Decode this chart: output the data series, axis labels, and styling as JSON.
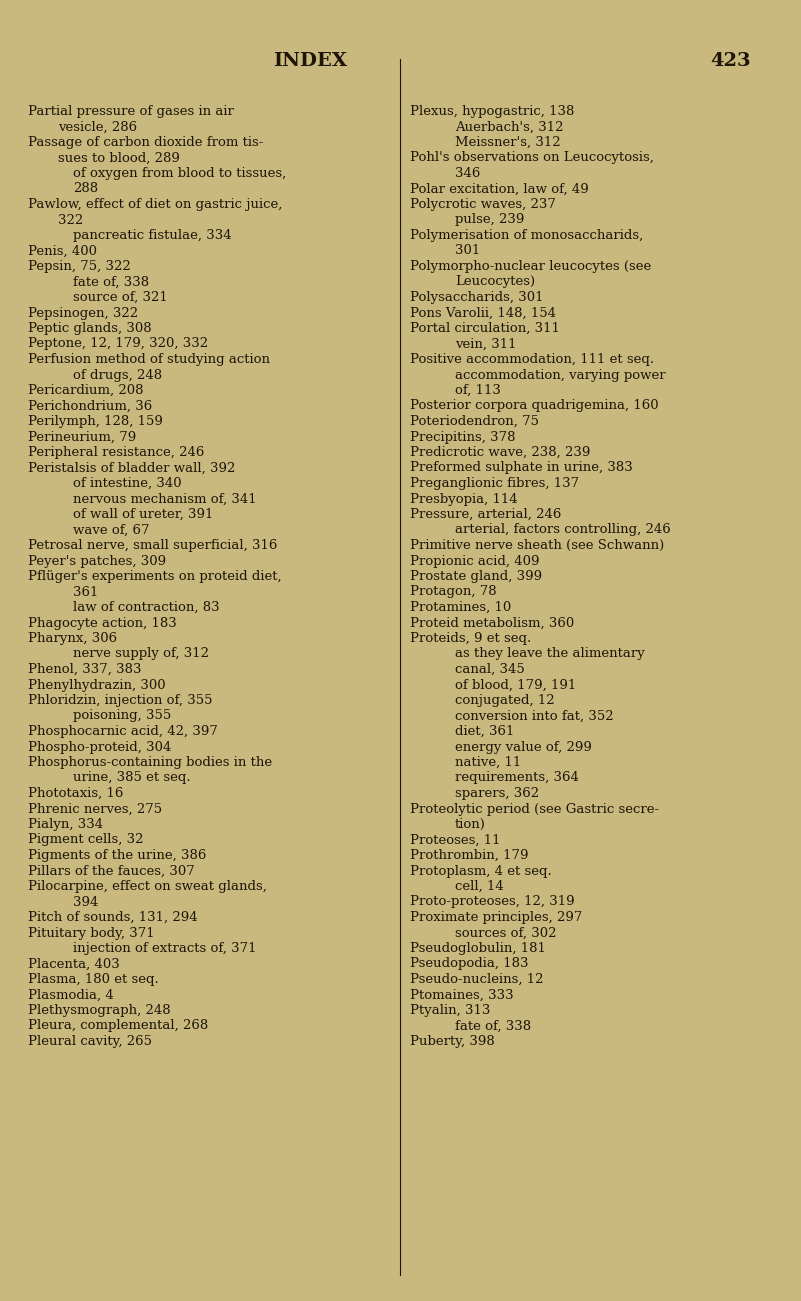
{
  "background_color": "#c9b97e",
  "text_color": "#1e1508",
  "title": "INDEX",
  "page_number": "423",
  "title_fontsize": 14,
  "body_fontsize": 9.5,
  "left_column": [
    [
      "Partial pressure of gases in air",
      0
    ],
    [
      "vesicle, 286",
      1
    ],
    [
      "Passage of carbon dioxide from tis-",
      0
    ],
    [
      "sues to blood, 289",
      1
    ],
    [
      "of oxygen from blood to tissues,",
      2
    ],
    [
      "288",
      2
    ],
    [
      "Pawlow, effect of diet on gastric juice,",
      0
    ],
    [
      "322",
      1
    ],
    [
      "pancreatic fistulae, 334",
      2
    ],
    [
      "Penis, 400",
      0
    ],
    [
      "Pepsin, 75, 322",
      0
    ],
    [
      "fate of, 338",
      2
    ],
    [
      "source of, 321",
      2
    ],
    [
      "Pepsinogen, 322",
      0
    ],
    [
      "Peptic glands, 308",
      0
    ],
    [
      "Peptone, 12, 179, 320, 332",
      0
    ],
    [
      "Perfusion method of studying action",
      0
    ],
    [
      "of drugs, 248",
      2
    ],
    [
      "Pericardium, 208",
      0
    ],
    [
      "Perichondrium, 36",
      0
    ],
    [
      "Perilymph, 128, 159",
      0
    ],
    [
      "Perineurium, 79",
      0
    ],
    [
      "Peripheral resistance, 246",
      0
    ],
    [
      "Peristalsis of bladder wall, 392",
      0
    ],
    [
      "of intestine, 340",
      2
    ],
    [
      "nervous mechanism of, 341",
      2
    ],
    [
      "of wall of ureter, 391",
      2
    ],
    [
      "wave of, 67",
      2
    ],
    [
      "Petrosal nerve, small superficial, 316",
      0
    ],
    [
      "Peyer's patches, 309",
      0
    ],
    [
      "Pflüger's experiments on proteid diet,",
      0
    ],
    [
      "361",
      2
    ],
    [
      "law of contraction, 83",
      2
    ],
    [
      "Phagocyte action, 183",
      0
    ],
    [
      "Pharynx, 306",
      0
    ],
    [
      "nerve supply of, 312",
      2
    ],
    [
      "Phenol, 337, 383",
      0
    ],
    [
      "Phenylhydrazin, 300",
      0
    ],
    [
      "Phloridzin, injection of, 355",
      0
    ],
    [
      "poisoning, 355",
      2
    ],
    [
      "Phosphocarnic acid, 42, 397",
      0
    ],
    [
      "Phospho-proteid, 304",
      0
    ],
    [
      "Phosphorus-containing bodies in the",
      0
    ],
    [
      "urine, 385 et seq.",
      2
    ],
    [
      "Phototaxis, 16",
      0
    ],
    [
      "Phrenic nerves, 275",
      0
    ],
    [
      "Pialyn, 334",
      0
    ],
    [
      "Pigment cells, 32",
      0
    ],
    [
      "Pigments of the urine, 386",
      0
    ],
    [
      "Pillars of the fauces, 307",
      0
    ],
    [
      "Pilocarpine, effect on sweat glands,",
      0
    ],
    [
      "394",
      2
    ],
    [
      "Pitch of sounds, 131, 294",
      0
    ],
    [
      "Pituitary body, 371",
      0
    ],
    [
      "injection of extracts of, 371",
      2
    ],
    [
      "Placenta, 403",
      0
    ],
    [
      "Plasma, 180 et seq.",
      0
    ],
    [
      "Plasmodia, 4",
      0
    ],
    [
      "Plethysmograph, 248",
      0
    ],
    [
      "Pleura, complemental, 268",
      0
    ],
    [
      "Pleural cavity, 265",
      0
    ]
  ],
  "right_column": [
    [
      "Plexus, hypogastric, 138",
      0
    ],
    [
      "Auerbach's, 312",
      2
    ],
    [
      "Meissner's, 312",
      2
    ],
    [
      "Pohl's observations on Leucocytosis,",
      0
    ],
    [
      "346",
      2
    ],
    [
      "Polar excitation, law of, 49",
      0
    ],
    [
      "Polycrotic waves, 237",
      0
    ],
    [
      "pulse, 239",
      2
    ],
    [
      "Polymerisation of monosaccharids,",
      0
    ],
    [
      "301",
      2
    ],
    [
      "Polymorpho-nuclear leucocytes (see",
      0
    ],
    [
      "Leucocytes)",
      2
    ],
    [
      "Polysaccharids, 301",
      0
    ],
    [
      "Pons Varolii, 148, 154",
      0
    ],
    [
      "Portal circulation, 311",
      0
    ],
    [
      "vein, 311",
      2
    ],
    [
      "Positive accommodation, 111 et seq.",
      0
    ],
    [
      "accommodation, varying power",
      2
    ],
    [
      "of, 113",
      2
    ],
    [
      "Posterior corpora quadrigemina, 160",
      0
    ],
    [
      "Poteriodendron, 75",
      0
    ],
    [
      "Precipitins, 378",
      0
    ],
    [
      "Predicrotic wave, 238, 239",
      0
    ],
    [
      "Preformed sulphate in urine, 383",
      0
    ],
    [
      "Preganglionic fibres, 137",
      0
    ],
    [
      "Presbyopia, 114",
      0
    ],
    [
      "Pressure, arterial, 246",
      0
    ],
    [
      "arterial, factors controlling, 246",
      2
    ],
    [
      "Primitive nerve sheath (see Schwann)",
      0
    ],
    [
      "Propionic acid, 409",
      0
    ],
    [
      "Prostate gland, 399",
      0
    ],
    [
      "Protagon, 78",
      0
    ],
    [
      "Protamines, 10",
      0
    ],
    [
      "Proteid metabolism, 360",
      0
    ],
    [
      "Proteids, 9 et seq.",
      0
    ],
    [
      "as they leave the alimentary",
      2
    ],
    [
      "canal, 345",
      2
    ],
    [
      "of blood, 179, 191",
      2
    ],
    [
      "conjugated, 12",
      2
    ],
    [
      "conversion into fat, 352",
      2
    ],
    [
      "diet, 361",
      2
    ],
    [
      "energy value of, 299",
      2
    ],
    [
      "native, 11",
      2
    ],
    [
      "requirements, 364",
      2
    ],
    [
      "sparers, 362",
      2
    ],
    [
      "Proteolytic period (see Gastric secre-",
      0
    ],
    [
      "tion)",
      2
    ],
    [
      "Proteoses, 11",
      0
    ],
    [
      "Prothrombin, 179",
      0
    ],
    [
      "Protoplasm, 4 et seq.",
      0
    ],
    [
      "cell, 14",
      2
    ],
    [
      "Proto-proteoses, 12, 319",
      0
    ],
    [
      "Proximate principles, 297",
      0
    ],
    [
      "sources of, 302",
      2
    ],
    [
      "Pseudoglobulin, 181",
      0
    ],
    [
      "Pseudopodia, 183",
      0
    ],
    [
      "Pseudo-nucleins, 12",
      0
    ],
    [
      "Ptomaines, 333",
      0
    ],
    [
      "Ptyalin, 313",
      0
    ],
    [
      "fate of, 338",
      2
    ],
    [
      "Puberty, 398",
      0
    ]
  ]
}
